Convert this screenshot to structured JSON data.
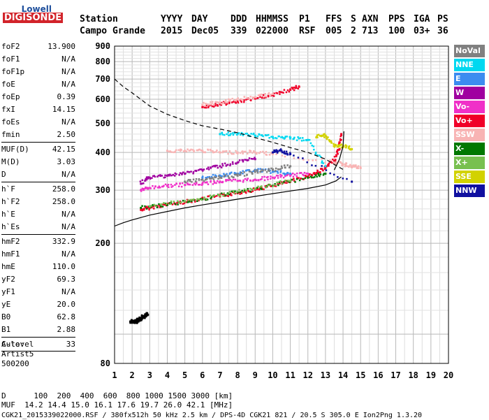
{
  "logo": {
    "top": "Lowell",
    "bottom": "DIGISONDE"
  },
  "header": {
    "labels": [
      "Station",
      "YYYY",
      "DAY",
      "DDD",
      "HHMMSS",
      "P1",
      "FFS",
      "S",
      "AXN",
      "PPS",
      "IGA",
      "PS"
    ],
    "values": [
      "Campo Grande",
      "2015",
      "Dec05",
      "339",
      "022000",
      "RSF",
      "005",
      "2",
      "713",
      "100",
      "03+",
      "36"
    ]
  },
  "params": {
    "group1": [
      {
        "label": "foF2",
        "value": "13.900"
      },
      {
        "label": "foF1",
        "value": "N/A"
      },
      {
        "label": "foF1p",
        "value": "N/A"
      },
      {
        "label": "foE",
        "value": "N/A"
      },
      {
        "label": "foEp",
        "value": "0.39"
      },
      {
        "label": "fxI",
        "value": "14.15"
      },
      {
        "label": "foEs",
        "value": "N/A"
      },
      {
        "label": "fmin",
        "value": "2.50"
      }
    ],
    "group2": [
      {
        "label": "MUF(D)",
        "value": "42.15"
      },
      {
        "label": "M(D)",
        "value": "3.03"
      },
      {
        "label": "D",
        "value": "N/A"
      }
    ],
    "group3": [
      {
        "label": "h`F",
        "value": "258.0"
      },
      {
        "label": "h`F2",
        "value": "258.0"
      },
      {
        "label": "h`E",
        "value": "N/A"
      },
      {
        "label": "h`Es",
        "value": "N/A"
      }
    ],
    "group4": [
      {
        "label": "hmF2",
        "value": "332.9"
      },
      {
        "label": "hmF1",
        "value": "N/A"
      },
      {
        "label": "hmE",
        "value": "110.0"
      },
      {
        "label": "yF2",
        "value": "69.3"
      },
      {
        "label": "yF1",
        "value": "N/A"
      },
      {
        "label": "yE",
        "value": "20.0"
      },
      {
        "label": "B0",
        "value": "62.8"
      },
      {
        "label": "B1",
        "value": "2.88"
      }
    ],
    "group5": [
      {
        "label": "C-level",
        "value": "33"
      }
    ],
    "auto_lines": [
      "Auto:",
      "Artist5",
      "500200"
    ]
  },
  "legend": [
    {
      "label": "NoVal",
      "color": "#808080"
    },
    {
      "label": "NNE",
      "color": "#00d8f0"
    },
    {
      "label": "E",
      "color": "#3c8cf0"
    },
    {
      "label": "W",
      "color": "#a000a0"
    },
    {
      "label": "Vo-",
      "color": "#f030c8"
    },
    {
      "label": "Vo+",
      "color": "#f00028"
    },
    {
      "label": "SSW",
      "color": "#f8b4b4"
    },
    {
      "label": "X-",
      "color": "#007800"
    },
    {
      "label": "X+",
      "color": "#78c050"
    },
    {
      "label": "SSE",
      "color": "#d2d200"
    },
    {
      "label": "NNW",
      "color": "#1010a0"
    }
  ],
  "footer": {
    "line1": "D      100  200  400  600  800 1000 1500 3000 [km]",
    "line2": "MUF  14.2 14.4 15.0 16.1 17.6 19.7 26.0 42.1 [MHz]",
    "line3": "CGK21_2015339022000.RSF / 380fx512h 50 kHz 2.5 km / DPS-4D CGK21 821 / 20.5 S 305.0 E Ion2Png 1.3.20"
  },
  "chart_data": {
    "type": "scatter",
    "xlabel": "",
    "ylabel": "",
    "xlim": [
      1,
      20
    ],
    "ylim": [
      80,
      900
    ],
    "y_scale": "log",
    "xticks": [
      1,
      2,
      3,
      4,
      5,
      6,
      7,
      8,
      9,
      10,
      11,
      12,
      13,
      14,
      15,
      16,
      17,
      18,
      19,
      20
    ],
    "yticks": [
      80,
      200,
      300,
      400,
      500,
      600,
      700,
      800,
      900
    ],
    "grid": true,
    "series": [
      {
        "name": "Vo+",
        "x": [
          2.5,
          3,
          4,
          5,
          6,
          7,
          8,
          9,
          10,
          11,
          12,
          12.5,
          13,
          13.5,
          13.8,
          13.9
        ],
        "y": [
          258,
          262,
          268,
          274,
          280,
          286,
          293,
          301,
          310,
          320,
          333,
          342,
          355,
          375,
          410,
          460
        ]
      },
      {
        "name": "Vo-",
        "x": [
          2.5,
          3,
          4,
          5,
          6,
          7,
          8,
          9,
          10,
          11,
          12
        ],
        "y": [
          300,
          305,
          310,
          312,
          315,
          320,
          322,
          325,
          330,
          335,
          340
        ]
      },
      {
        "name": "SSW",
        "x": [
          4,
          5,
          6,
          7,
          8,
          9,
          10,
          13.5,
          14,
          14.5,
          15
        ],
        "y": [
          405,
          405,
          405,
          400,
          400,
          400,
          395,
          370,
          365,
          360,
          355
        ]
      },
      {
        "name": "NNE",
        "x": [
          7,
          8,
          9,
          10,
          11,
          12,
          13
        ],
        "y": [
          460,
          460,
          455,
          450,
          445,
          440,
          360
        ]
      },
      {
        "name": "E",
        "x": [
          6,
          7,
          8,
          9,
          10,
          11
        ],
        "y": [
          330,
          335,
          340,
          350,
          345,
          340
        ]
      },
      {
        "name": "W",
        "x": [
          2.5,
          3,
          4,
          5,
          6,
          7,
          8,
          9
        ],
        "y": [
          315,
          330,
          335,
          340,
          350,
          360,
          370,
          380
        ]
      },
      {
        "name": "SSE",
        "x": [
          12.5,
          13,
          13.5,
          14,
          14.5
        ],
        "y": [
          450,
          455,
          420,
          420,
          410
        ]
      },
      {
        "name": "NNW",
        "x": [
          10,
          10.5,
          11,
          14.5
        ],
        "y": [
          400,
          405,
          395,
          320
        ]
      },
      {
        "name": "X-",
        "x": [
          2.5,
          4,
          6,
          8,
          10,
          12,
          13
        ],
        "y": [
          262,
          268,
          280,
          295,
          310,
          330,
          340
        ]
      },
      {
        "name": "X+",
        "x": [
          3,
          5,
          7,
          9,
          11
        ],
        "y": [
          265,
          275,
          288,
          303,
          322
        ]
      },
      {
        "name": "NoVal",
        "x": [
          5,
          6,
          7,
          8,
          9,
          10,
          11
        ],
        "y": [
          320,
          325,
          330,
          335,
          345,
          350,
          360
        ]
      },
      {
        "name": "Vo+ second hop",
        "x": [
          6,
          7,
          8,
          9,
          10,
          11,
          11.5
        ],
        "y": [
          565,
          578,
          590,
          603,
          620,
          645,
          660
        ]
      },
      {
        "name": "SSW second hop",
        "x": [
          6,
          7,
          8,
          9,
          10
        ],
        "y": [
          575,
          585,
          600,
          610,
          625
        ]
      },
      {
        "name": "low hop",
        "x": [
          1.9,
          2,
          2.1,
          2.2,
          2.3,
          2.4,
          2.5,
          2.6,
          2.7,
          2.8,
          2.9
        ],
        "y": [
          110,
          110,
          110,
          110,
          110,
          112,
          112,
          114,
          114,
          116,
          116
        ]
      }
    ],
    "profile_curve": {
      "x": [
        1,
        1.5,
        2,
        3,
        4,
        5,
        6,
        7,
        8,
        9,
        10,
        11,
        12,
        13,
        13.6,
        13.9
      ],
      "y": [
        228,
        234,
        239,
        248,
        255,
        262,
        268,
        274,
        280,
        286,
        292,
        298,
        304,
        312,
        322,
        332
      ]
    },
    "muf_curve": {
      "x": [
        1,
        1.5,
        2,
        3,
        4,
        5,
        6,
        7,
        8,
        9,
        10,
        11,
        12,
        13,
        13.5,
        14.05
      ],
      "y": [
        700,
        660,
        630,
        570,
        535,
        510,
        490,
        478,
        465,
        448,
        432,
        415,
        400,
        380,
        365,
        350
      ]
    },
    "trace_curve": {
      "x": [
        13.5,
        13.8,
        14.0,
        14.05
      ],
      "y": [
        350,
        380,
        420,
        470
      ]
    }
  }
}
